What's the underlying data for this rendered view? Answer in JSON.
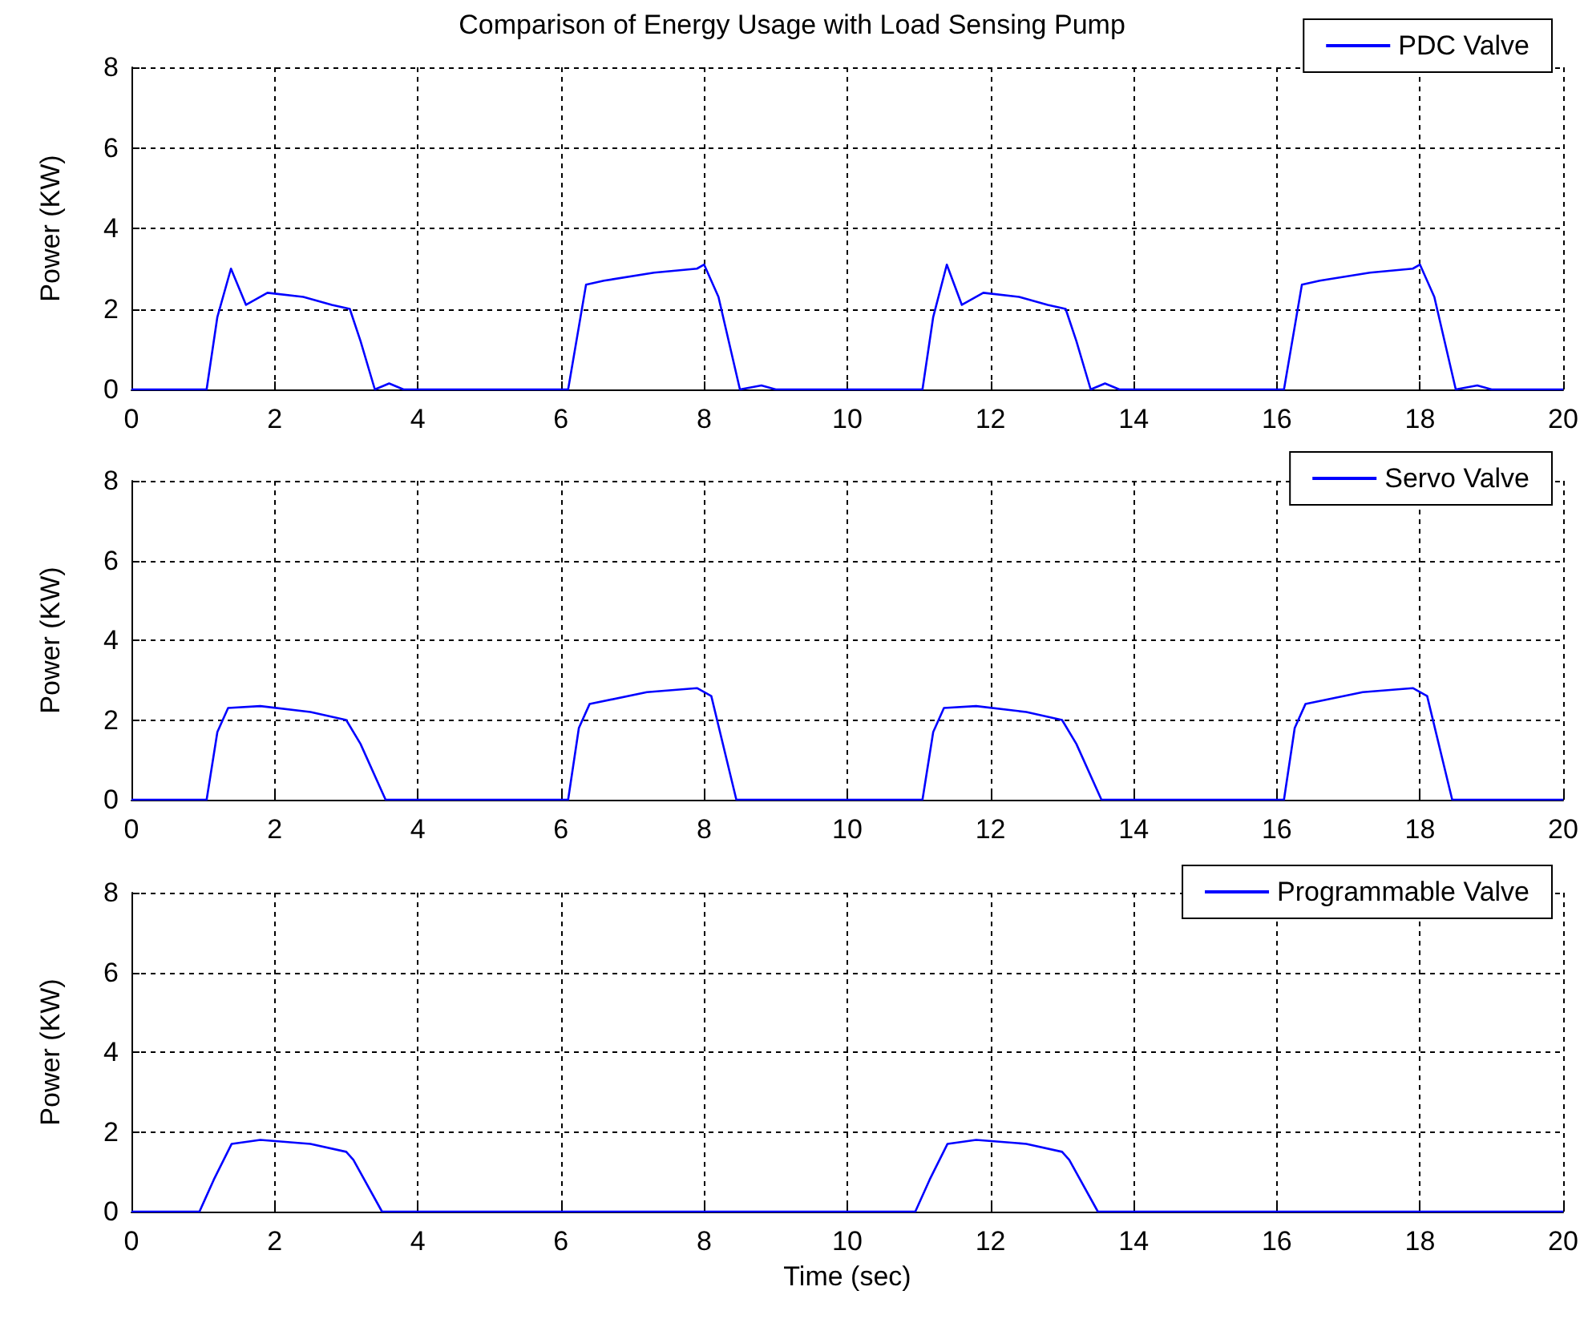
{
  "chart_data": [
    {
      "type": "line",
      "title": "Comparison of Energy Usage with Load Sensing Pump",
      "ylabel": "Power (KW)",
      "xlim": [
        0,
        20
      ],
      "xticks": [
        0,
        2,
        4,
        6,
        8,
        10,
        12,
        14,
        16,
        18,
        20
      ],
      "ylim": [
        0,
        8
      ],
      "yticks": [
        0,
        2,
        4,
        6,
        8
      ],
      "grid": true,
      "legend": "top right",
      "marker": "none",
      "line_style": "solid",
      "series": [
        {
          "name": "PDC Valve",
          "color": "#0000ff",
          "x": [
            0,
            1.05,
            1.2,
            1.39,
            1.6,
            1.9,
            2.4,
            2.8,
            3.05,
            3.2,
            3.4,
            3.6,
            3.8,
            6.1,
            6.35,
            6.6,
            7.3,
            7.9,
            8.0,
            8.2,
            8.5,
            8.8,
            9.0,
            11.05,
            11.2,
            11.39,
            11.6,
            11.9,
            12.4,
            12.8,
            13.05,
            13.2,
            13.4,
            13.6,
            13.8,
            16.1,
            16.35,
            16.6,
            17.3,
            17.9,
            18.0,
            18.2,
            18.5,
            18.8,
            19.0,
            20
          ],
          "values": [
            0,
            0,
            1.8,
            3.0,
            2.1,
            2.4,
            2.3,
            2.1,
            2.0,
            1.2,
            0,
            0.15,
            0,
            0,
            2.6,
            2.7,
            2.9,
            3.0,
            3.1,
            2.3,
            0,
            0.1,
            0,
            0,
            1.8,
            3.1,
            2.1,
            2.4,
            2.3,
            2.1,
            2.0,
            1.2,
            0,
            0.15,
            0,
            0,
            2.6,
            2.7,
            2.9,
            3.0,
            3.1,
            2.3,
            0,
            0.1,
            0,
            0
          ]
        }
      ]
    },
    {
      "type": "line",
      "ylabel": "Power (KW)",
      "xlim": [
        0,
        20
      ],
      "xticks": [
        0,
        2,
        4,
        6,
        8,
        10,
        12,
        14,
        16,
        18,
        20
      ],
      "ylim": [
        0,
        8
      ],
      "yticks": [
        0,
        2,
        4,
        6,
        8
      ],
      "grid": true,
      "legend": "top right",
      "marker": "none",
      "line_style": "solid",
      "series": [
        {
          "name": "Servo Valve",
          "color": "#0000ff",
          "x": [
            0,
            1.05,
            1.2,
            1.35,
            1.8,
            2.5,
            3.0,
            3.2,
            3.55,
            6.1,
            6.25,
            6.4,
            7.2,
            7.9,
            8.1,
            8.45,
            11.05,
            11.2,
            11.35,
            11.8,
            12.5,
            13.0,
            13.2,
            13.55,
            16.1,
            16.25,
            16.4,
            17.2,
            17.9,
            18.1,
            18.45,
            20
          ],
          "values": [
            0,
            0,
            1.7,
            2.3,
            2.35,
            2.2,
            2.0,
            1.4,
            0,
            0,
            1.8,
            2.4,
            2.7,
            2.8,
            2.6,
            0,
            0,
            1.7,
            2.3,
            2.35,
            2.2,
            2.0,
            1.4,
            0,
            0,
            1.8,
            2.4,
            2.7,
            2.8,
            2.6,
            0,
            0
          ]
        }
      ]
    },
    {
      "type": "line",
      "xlabel": "Time (sec)",
      "ylabel": "Power (KW)",
      "xlim": [
        0,
        20
      ],
      "xticks": [
        0,
        2,
        4,
        6,
        8,
        10,
        12,
        14,
        16,
        18,
        20
      ],
      "ylim": [
        0,
        8
      ],
      "yticks": [
        0,
        2,
        4,
        6,
        8
      ],
      "grid": true,
      "legend": "top right",
      "marker": "none",
      "line_style": "solid",
      "series": [
        {
          "name": "Programmable Valve",
          "color": "#0000ff",
          "x": [
            0,
            0.95,
            1.15,
            1.4,
            1.8,
            2.5,
            3.0,
            3.1,
            3.5,
            10.95,
            11.15,
            11.4,
            11.8,
            12.5,
            13.0,
            13.1,
            13.5,
            20
          ],
          "values": [
            0,
            0,
            0.8,
            1.7,
            1.8,
            1.7,
            1.5,
            1.3,
            0,
            0,
            0.8,
            1.7,
            1.8,
            1.7,
            1.5,
            1.3,
            0,
            0
          ]
        }
      ]
    }
  ]
}
